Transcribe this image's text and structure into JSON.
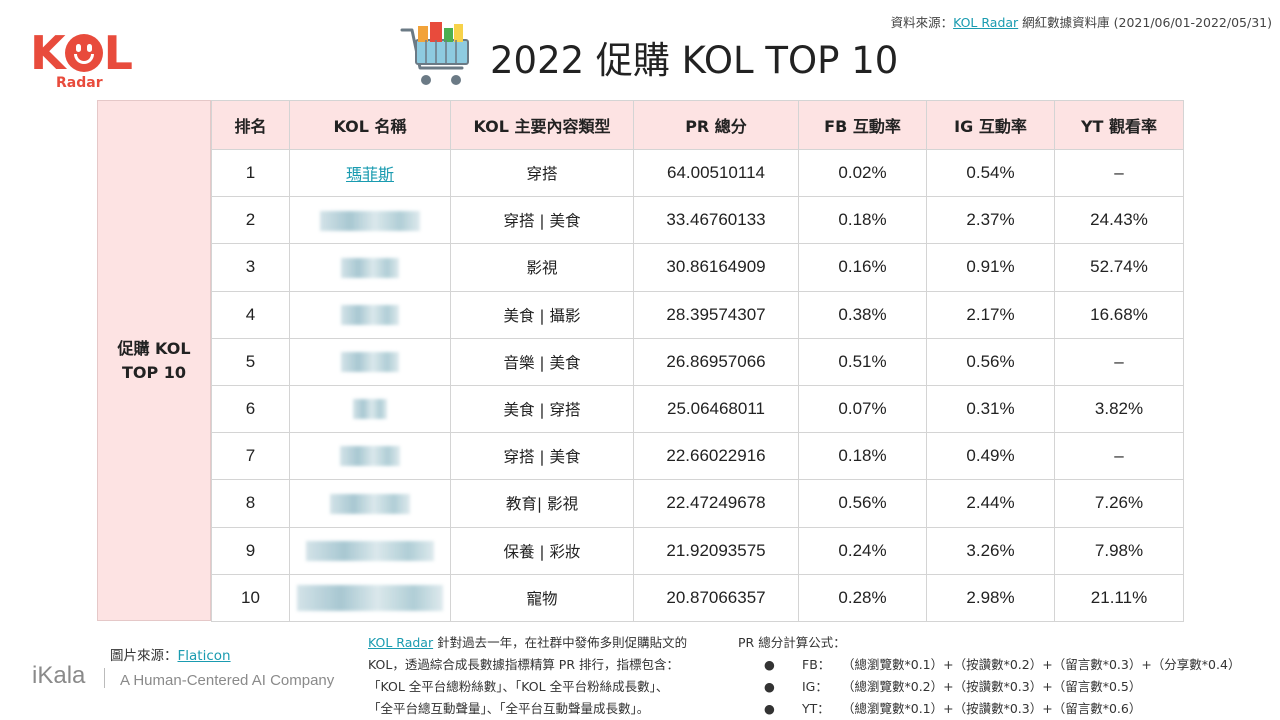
{
  "source": {
    "prefix": "資料來源：",
    "link": "KOL Radar",
    "suffix": " 網紅數據資料庫 (2021/06/01-2022/05/31)"
  },
  "logo": {
    "main": "KOL",
    "sub": "Radar"
  },
  "title": "2022 促購 KOL TOP 10",
  "side_label": {
    "line1": "促購 KOL",
    "line2": "TOP 10"
  },
  "table": {
    "headers": [
      "排名",
      "KOL 名稱",
      "KOL 主要內容類型",
      "PR 總分",
      "FB 互動率",
      "IG 互動率",
      "YT 觀看率"
    ],
    "rows": [
      {
        "rank": "1",
        "name": "瑪菲斯",
        "category": "穿搭",
        "pr": "64.00510114",
        "fb": "0.02%",
        "ig": "0.54%",
        "yt": "–"
      },
      {
        "rank": "2",
        "name": "",
        "category": "穿搭 | 美食",
        "pr": "33.46760133",
        "fb": "0.18%",
        "ig": "2.37%",
        "yt": "24.43%"
      },
      {
        "rank": "3",
        "name": "",
        "category": "影視",
        "pr": "30.86164909",
        "fb": "0.16%",
        "ig": "0.91%",
        "yt": "52.74%"
      },
      {
        "rank": "4",
        "name": "",
        "category": "美食 | 攝影",
        "pr": "28.39574307",
        "fb": "0.38%",
        "ig": "2.17%",
        "yt": "16.68%"
      },
      {
        "rank": "5",
        "name": "",
        "category": "音樂 | 美食",
        "pr": "26.86957066",
        "fb": "0.51%",
        "ig": "0.56%",
        "yt": "–"
      },
      {
        "rank": "6",
        "name": "",
        "category": "美食 | 穿搭",
        "pr": "25.06468011",
        "fb": "0.07%",
        "ig": "0.31%",
        "yt": "3.82%"
      },
      {
        "rank": "7",
        "name": "",
        "category": "穿搭 | 美食",
        "pr": "22.66022916",
        "fb": "0.18%",
        "ig": "0.49%",
        "yt": "–"
      },
      {
        "rank": "8",
        "name": "",
        "category": "教育| 影視",
        "pr": "22.47249678",
        "fb": "0.56%",
        "ig": "2.44%",
        "yt": "7.26%"
      },
      {
        "rank": "9",
        "name": "",
        "category": "保養 | 彩妝",
        "pr": "21.92093575",
        "fb": "0.24%",
        "ig": "3.26%",
        "yt": "7.98%"
      },
      {
        "rank": "10",
        "name": "",
        "category": "寵物",
        "pr": "20.87066357",
        "fb": "0.28%",
        "ig": "2.98%",
        "yt": "21.11%"
      }
    ]
  },
  "image_source": {
    "prefix": "圖片來源：",
    "link": "Flaticon"
  },
  "ikala": {
    "brand": "iKala",
    "tagline": "A Human-Centered AI Company"
  },
  "note": {
    "link": "KOL Radar",
    "line1_rest": " 針對過去一年，在社群中發佈多則促購貼文的",
    "line2": "KOL，透過綜合成長數據指標精算 PR 排行，指標包含：",
    "line3": "「KOL 全平台總粉絲數」、「KOL 全平台粉絲成長數」、",
    "line4": "「全平台總互動聲量」、「全平台互動聲量成長數」。"
  },
  "formula": {
    "heading": "PR 總分計算公式：",
    "bullet": "●",
    "items": [
      {
        "key": "FB：",
        "expr": "（總瀏覽數*0.1）+（按讚數*0.2）+（留言數*0.3）+（分享數*0.4）"
      },
      {
        "key": "IG：",
        "expr": "（總瀏覽數*0.2）+（按讚數*0.3）+（留言數*0.5）"
      },
      {
        "key": "YT：",
        "expr": "（總瀏覽數*0.1）+（按讚數*0.3）+（留言數*0.6）"
      }
    ]
  }
}
